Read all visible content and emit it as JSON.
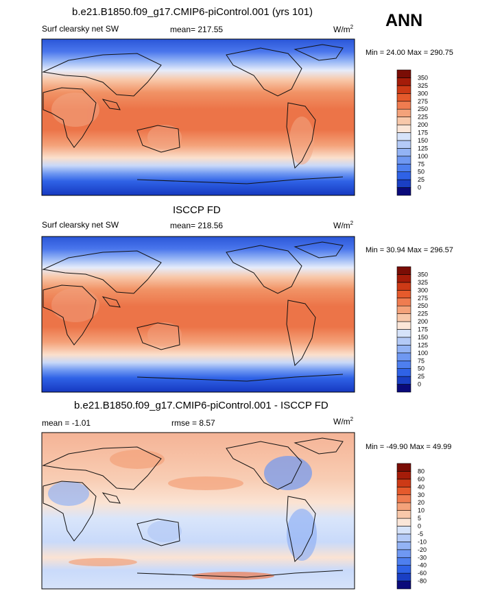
{
  "season": "ANN",
  "units_base": "W/m",
  "units_exp": "2",
  "panels": [
    {
      "id": "model",
      "title": "b.e21.B1850.f09_g17.CMIP6-piControl.001 (yrs 101)",
      "variable": "Surf clearsky net SW",
      "mean_label": "mean=",
      "mean_value": "217.55",
      "min_label": "Min =",
      "min_value": "24.00",
      "max_label": "Max =",
      "max_value": "290.75",
      "colorbar_levels": [
        "0",
        "25",
        "50",
        "75",
        "100",
        "125",
        "150",
        "175",
        "200",
        "225",
        "250",
        "275",
        "300",
        "325",
        "350"
      ],
      "colorbar_colors": [
        "#0a0a7a",
        "#1a3fc4",
        "#2f62e6",
        "#4e7fef",
        "#6f98f2",
        "#93b3f5",
        "#b4caf7",
        "#d6e3fa",
        "#fbe6d8",
        "#f8c8aa",
        "#f4a27a",
        "#ef7c50",
        "#e55a2c",
        "#cd3a16",
        "#a51c09",
        "#7a0d05"
      ]
    },
    {
      "id": "obs",
      "title": "ISCCP FD",
      "variable": "Surf clearsky net SW",
      "mean_label": "mean=",
      "mean_value": "218.56",
      "min_label": "Min =",
      "min_value": "30.94",
      "max_label": "Max =",
      "max_value": "296.57",
      "colorbar_levels": [
        "0",
        "25",
        "50",
        "75",
        "100",
        "125",
        "150",
        "175",
        "200",
        "225",
        "250",
        "275",
        "300",
        "325",
        "350"
      ],
      "colorbar_colors": [
        "#0a0a7a",
        "#1a3fc4",
        "#2f62e6",
        "#4e7fef",
        "#6f98f2",
        "#93b3f5",
        "#b4caf7",
        "#d6e3fa",
        "#fbe6d8",
        "#f8c8aa",
        "#f4a27a",
        "#ef7c50",
        "#e55a2c",
        "#cd3a16",
        "#a51c09",
        "#7a0d05"
      ]
    },
    {
      "id": "diff",
      "title": "b.e21.B1850.f09_g17.CMIP6-piControl.001 - ISCCP FD",
      "mean_label": "mean =",
      "mean_value": "-1.01",
      "rmse_label": "rmse =",
      "rmse_value": "8.57",
      "min_label": "Min =",
      "min_value": "-49.90",
      "max_label": "Max =",
      "max_value": "49.99",
      "colorbar_levels": [
        "-80",
        "-60",
        "-40",
        "-30",
        "-20",
        "-10",
        "-5",
        "0",
        "5",
        "10",
        "20",
        "30",
        "40",
        "60",
        "80"
      ],
      "colorbar_colors": [
        "#0a0a7a",
        "#1a3fc4",
        "#2f62e6",
        "#4e7fef",
        "#6f98f2",
        "#93b3f5",
        "#b4caf7",
        "#d6e3fa",
        "#fbe6d8",
        "#f8c8aa",
        "#f4a27a",
        "#ef7c50",
        "#e55a2c",
        "#cd3a16",
        "#a51c09",
        "#7a0d05"
      ]
    }
  ]
}
